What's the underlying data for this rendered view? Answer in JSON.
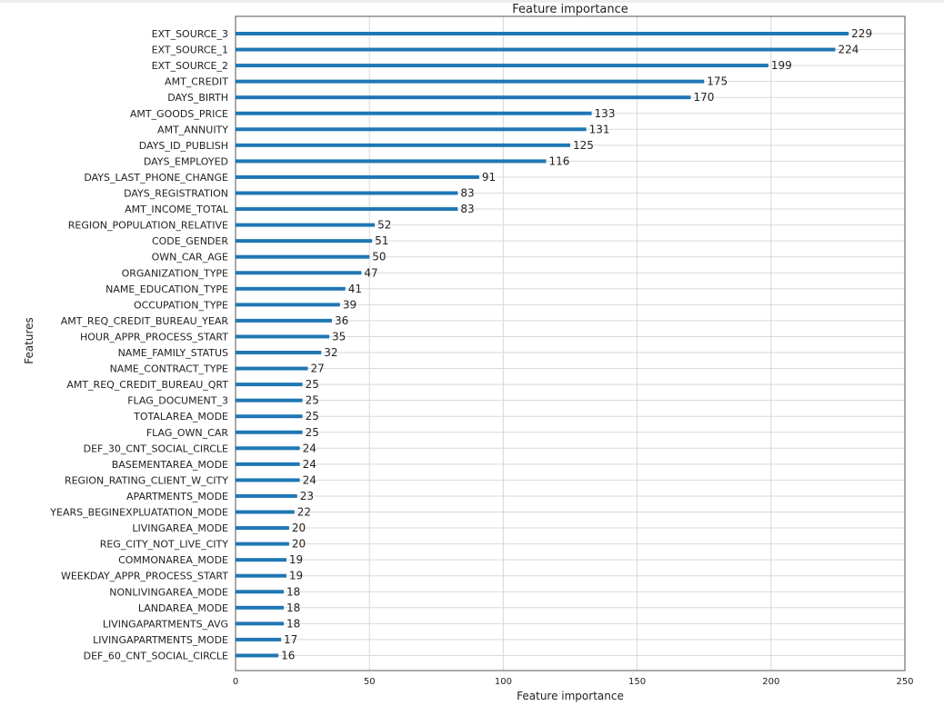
{
  "chart_data": {
    "type": "bar",
    "orientation": "horizontal",
    "title": "Feature importance",
    "xlabel": "Feature importance",
    "ylabel": "Features",
    "xlim": [
      0,
      250
    ],
    "xticks": [
      0,
      50,
      100,
      150,
      200,
      250
    ],
    "grid": true,
    "bar_color": "#1f77b4",
    "categories": [
      "EXT_SOURCE_3",
      "EXT_SOURCE_1",
      "EXT_SOURCE_2",
      "AMT_CREDIT",
      "DAYS_BIRTH",
      "AMT_GOODS_PRICE",
      "AMT_ANNUITY",
      "DAYS_ID_PUBLISH",
      "DAYS_EMPLOYED",
      "DAYS_LAST_PHONE_CHANGE",
      "DAYS_REGISTRATION",
      "AMT_INCOME_TOTAL",
      "REGION_POPULATION_RELATIVE",
      "CODE_GENDER",
      "OWN_CAR_AGE",
      "ORGANIZATION_TYPE",
      "NAME_EDUCATION_TYPE",
      "OCCUPATION_TYPE",
      "AMT_REQ_CREDIT_BUREAU_YEAR",
      "HOUR_APPR_PROCESS_START",
      "NAME_FAMILY_STATUS",
      "NAME_CONTRACT_TYPE",
      "AMT_REQ_CREDIT_BUREAU_QRT",
      "FLAG_DOCUMENT_3",
      "TOTALAREA_MODE",
      "FLAG_OWN_CAR",
      "DEF_30_CNT_SOCIAL_CIRCLE",
      "BASEMENTAREA_MODE",
      "REGION_RATING_CLIENT_W_CITY",
      "APARTMENTS_MODE",
      "YEARS_BEGINEXPLUATATION_MODE",
      "LIVINGAREA_MODE",
      "REG_CITY_NOT_LIVE_CITY",
      "COMMONAREA_MODE",
      "WEEKDAY_APPR_PROCESS_START",
      "NONLIVINGAREA_MODE",
      "LANDAREA_MODE",
      "LIVINGAPARTMENTS_AVG",
      "LIVINGAPARTMENTS_MODE",
      "DEF_60_CNT_SOCIAL_CIRCLE"
    ],
    "values": [
      229,
      224,
      199,
      175,
      170,
      133,
      131,
      125,
      116,
      91,
      83,
      83,
      52,
      51,
      50,
      47,
      41,
      39,
      36,
      35,
      32,
      27,
      25,
      25,
      25,
      25,
      24,
      24,
      24,
      23,
      22,
      20,
      20,
      19,
      19,
      18,
      18,
      18,
      17,
      16
    ]
  }
}
